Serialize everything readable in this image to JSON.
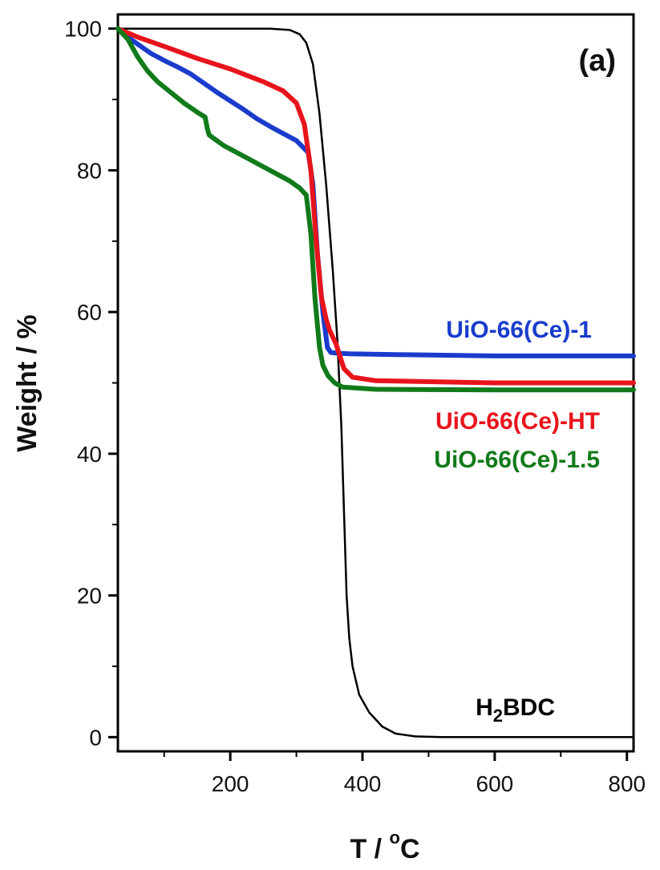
{
  "chart_data": {
    "type": "line",
    "panel_label": "(a)",
    "xlabel": {
      "main": "T / ",
      "sup": "o",
      "tail": "C"
    },
    "ylabel": "Weight /  %",
    "xlim": [
      30,
      810
    ],
    "ylim": [
      -2,
      102
    ],
    "xticks": [
      200,
      400,
      600,
      800
    ],
    "yticks": [
      0,
      20,
      40,
      60,
      80,
      100
    ],
    "grid": false,
    "legend": "inline",
    "series": [
      {
        "name": "H2BDC",
        "label_main": "H",
        "label_sub": "2",
        "label_tail": "BDC",
        "color": "#000000",
        "x": [
          30,
          100,
          200,
          260,
          290,
          305,
          315,
          325,
          335,
          345,
          355,
          362,
          368,
          372,
          376,
          380,
          385,
          395,
          410,
          430,
          450,
          480,
          520,
          600,
          700,
          810
        ],
        "y": [
          100,
          100,
          100,
          100,
          99.8,
          99.2,
          98,
          95,
          88,
          78,
          66,
          56,
          44,
          32,
          20,
          14,
          10,
          6,
          3.5,
          1.5,
          0.5,
          0.1,
          0,
          0,
          0,
          0
        ]
      },
      {
        "name": "UiO-66(Ce)-1",
        "color": "#1a3ccc",
        "x": [
          30,
          45,
          60,
          80,
          100,
          120,
          140,
          160,
          180,
          200,
          220,
          240,
          260,
          280,
          300,
          318,
          325,
          332,
          340,
          347,
          352,
          360,
          380,
          450,
          600,
          810
        ],
        "y": [
          100,
          98.8,
          97.8,
          96.5,
          95.5,
          94.6,
          93.6,
          92.3,
          91,
          89.8,
          88.6,
          87.3,
          86.2,
          85.2,
          84.2,
          82.5,
          78,
          68,
          60,
          55,
          54.3,
          54.2,
          54.1,
          54,
          53.8,
          53.8
        ]
      },
      {
        "name": "UiO-66(Ce)-HT",
        "color": "#e8141c",
        "x": [
          30,
          60,
          100,
          150,
          200,
          250,
          280,
          300,
          312,
          322,
          330,
          338,
          345,
          350,
          355,
          360,
          365,
          372,
          385,
          420,
          600,
          810
        ],
        "y": [
          100,
          98.8,
          97.5,
          95.8,
          94.3,
          92.5,
          91.2,
          89.5,
          86.5,
          80,
          70,
          62,
          59,
          57.5,
          56.5,
          55.5,
          54,
          52,
          50.8,
          50.3,
          50,
          50
        ]
      },
      {
        "name": "UiO-66(Ce)-1.5",
        "color": "#117a1a",
        "x": [
          30,
          45,
          60,
          75,
          90,
          110,
          130,
          150,
          162,
          165,
          168,
          175,
          190,
          210,
          230,
          250,
          270,
          290,
          305,
          315,
          322,
          328,
          335,
          340,
          348,
          358,
          370,
          420,
          600,
          810
        ],
        "y": [
          100,
          98.5,
          96,
          94,
          92.5,
          91,
          89.5,
          88.2,
          87.5,
          86,
          85,
          84.5,
          83.5,
          82.5,
          81.5,
          80.5,
          79.5,
          78.5,
          77.5,
          76.5,
          71,
          62,
          55,
          52.5,
          51,
          50,
          49.4,
          49.1,
          49,
          49
        ]
      }
    ]
  }
}
